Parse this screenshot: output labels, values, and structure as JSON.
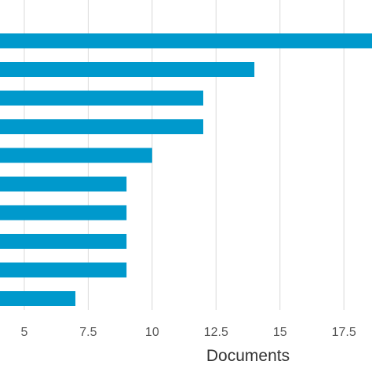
{
  "chart_data": {
    "type": "bar",
    "orientation": "horizontal",
    "title": "",
    "xlabel": "Documents",
    "ylabel": "",
    "categories": [
      "",
      "",
      "",
      "",
      "",
      "",
      "",
      "",
      "",
      ""
    ],
    "values": [
      19,
      14,
      12,
      12,
      10,
      9,
      9,
      9,
      9,
      7
    ],
    "xlim": [
      4.05,
      18.6
    ],
    "xticks": [
      5,
      7.5,
      10,
      12.5,
      15,
      17.5
    ],
    "xtick_labels": [
      "5",
      "7.5",
      "10",
      "12.5",
      "15",
      "17.5"
    ],
    "grid": "vertical",
    "bar_color": "#0099cc"
  }
}
